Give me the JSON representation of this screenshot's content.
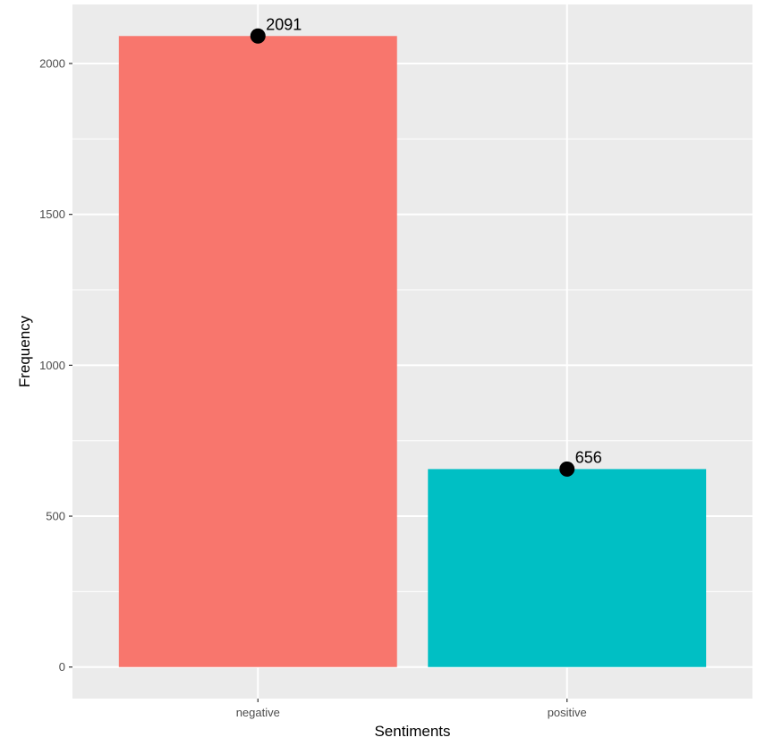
{
  "chart_data": {
    "type": "bar",
    "categories": [
      "negative",
      "positive"
    ],
    "values": [
      2091,
      656
    ],
    "bar_colors": [
      "#F8766D",
      "#00BFC4"
    ],
    "point_color": "#000000",
    "data_labels": [
      "2091",
      "656"
    ],
    "xlabel": "Sentiments",
    "ylabel": "Frequency",
    "ylim": [
      -104.55,
      2195.55
    ],
    "yticks": [
      0,
      500,
      1000,
      1500,
      2000
    ],
    "ytick_labels": [
      "0",
      "500",
      "1000",
      "1500",
      "2000"
    ],
    "y_minor_ticks": [
      250,
      750,
      1250,
      1750
    ],
    "grid": true,
    "panel_background": "#EBEBEB",
    "legend": "none"
  }
}
